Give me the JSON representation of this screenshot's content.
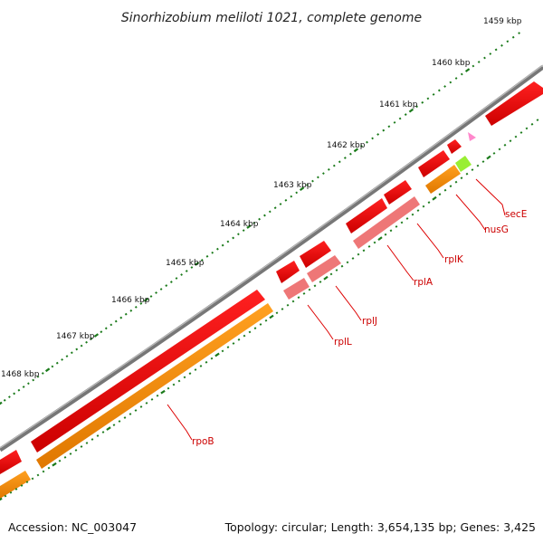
{
  "title": "Sinorhizobium meliloti 1021, complete genome",
  "footer": {
    "accession": "Accession: NC_003047",
    "summary": "Topology: circular; Length: 3,654,135 bp; Genes: 3,425"
  },
  "ticks": [
    {
      "label": "1459 kbp"
    },
    {
      "label": "1460 kbp"
    },
    {
      "label": "1461 kbp"
    },
    {
      "label": "1462 kbp"
    },
    {
      "label": "1463 kbp"
    },
    {
      "label": "1464 kbp"
    },
    {
      "label": "1465 kbp"
    },
    {
      "label": "1466 kbp"
    },
    {
      "label": "1467 kbp"
    },
    {
      "label": "1468 kbp"
    }
  ],
  "genes": [
    {
      "name": "secE"
    },
    {
      "name": "nusG"
    },
    {
      "name": "rplK"
    },
    {
      "name": "rplA"
    },
    {
      "name": "rplJ"
    },
    {
      "name": "rplL"
    },
    {
      "name": "rpoB"
    }
  ],
  "colors": {
    "backbone": "#8a8a8a",
    "cds_forward": "#ee0000",
    "gene_light": "#f08080",
    "orf": "#ff8c00",
    "small_feature": "#99ee33",
    "marker": "#ff88cc",
    "tick": "#1a7a1a",
    "label_line": "#dd0000"
  }
}
